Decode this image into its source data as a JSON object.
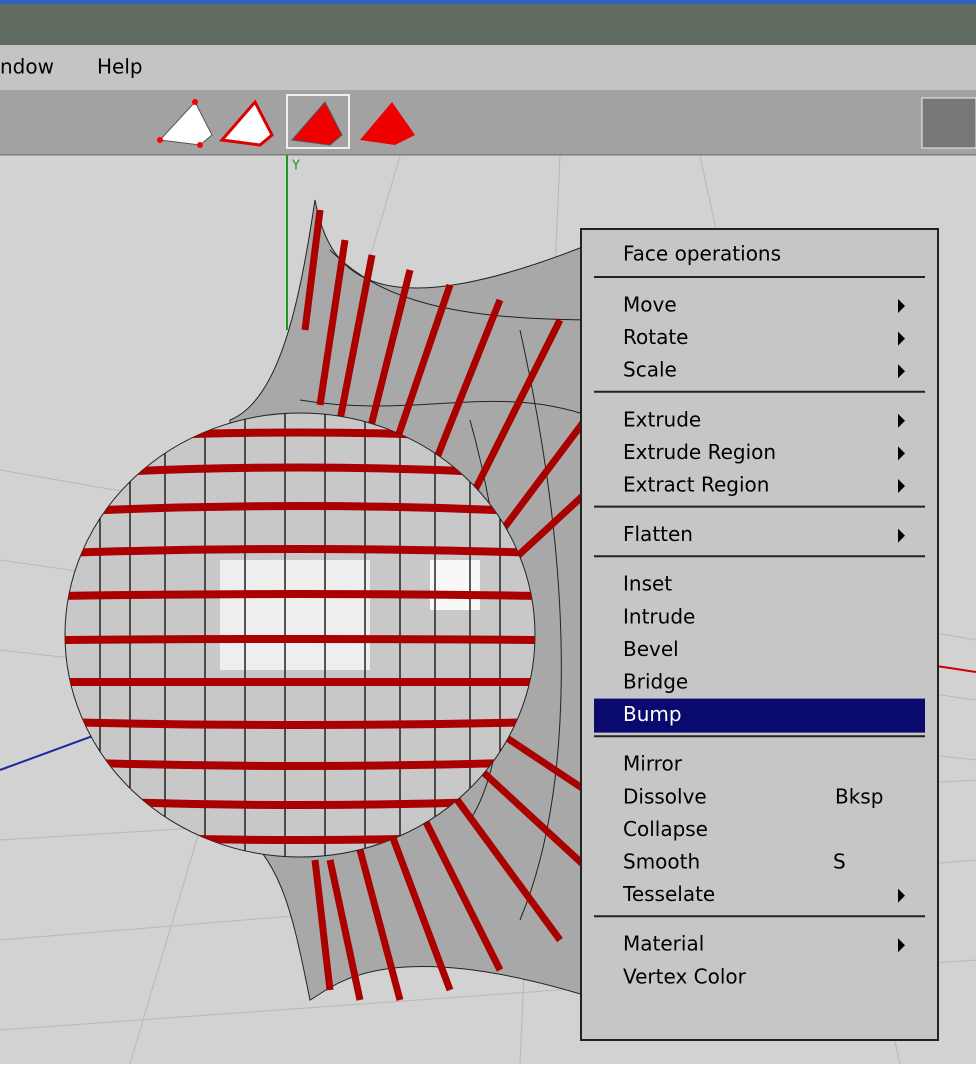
{
  "menu_bar": [
    "ndow",
    "Help"
  ],
  "context_menu": {
    "title": "Face operations",
    "groups": [
      [
        {
          "label": "Move",
          "submenu": true
        },
        {
          "label": "Rotate",
          "submenu": true
        },
        {
          "label": "Scale",
          "submenu": true
        }
      ],
      [
        {
          "label": "Extrude",
          "submenu": true
        },
        {
          "label": "Extrude Region",
          "submenu": true
        },
        {
          "label": "Extract Region",
          "submenu": true
        }
      ],
      [
        {
          "label": "Flatten",
          "submenu": true
        }
      ],
      [
        {
          "label": "Inset"
        },
        {
          "label": "Intrude"
        },
        {
          "label": "Bevel"
        },
        {
          "label": "Bridge"
        },
        {
          "label": "Bump",
          "highlighted": true
        }
      ],
      [
        {
          "label": "Mirror"
        },
        {
          "label": "Dissolve",
          "shortcut": "Bksp"
        },
        {
          "label": "Collapse"
        },
        {
          "label": "Smooth",
          "shortcut": "S"
        },
        {
          "label": "Tesselate",
          "submenu": true
        }
      ],
      [
        {
          "label": "Material",
          "submenu": true
        },
        {
          "label": "Vertex Color"
        }
      ]
    ]
  },
  "axis_label": "Y"
}
